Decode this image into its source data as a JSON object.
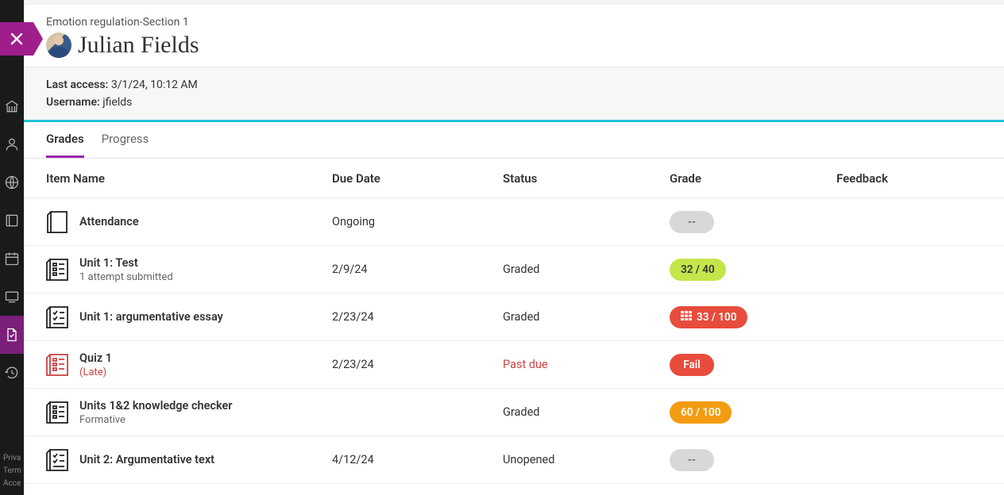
{
  "breadcrumb": "Emotion regulation-Section 1",
  "student_name": "Julian Fields",
  "info": {
    "last_access_label": "Last access:",
    "last_access": "3/1/24, 10:12 AM",
    "username_label": "Username:",
    "username": "jfields"
  },
  "tabs": {
    "grades": "Grades",
    "progress": "Progress"
  },
  "columns": {
    "item": "Item Name",
    "due": "Due Date",
    "status": "Status",
    "grade": "Grade",
    "feedback": "Feedback"
  },
  "rows": [
    {
      "icon": "attendance",
      "title": "Attendance",
      "sub": "",
      "sub_late": false,
      "due": "Ongoing",
      "status": "",
      "status_pastdue": false,
      "grade": "--",
      "grade_style": "blank",
      "has_rubric": false
    },
    {
      "icon": "test",
      "title": "Unit 1: Test",
      "sub": "1 attempt submitted",
      "sub_late": false,
      "due": "2/9/24",
      "status": "Graded",
      "status_pastdue": false,
      "grade": "32 / 40",
      "grade_style": "green",
      "has_rubric": false
    },
    {
      "icon": "essay",
      "title": "Unit 1: argumentative essay",
      "sub": "",
      "sub_late": false,
      "due": "2/23/24",
      "status": "Graded",
      "status_pastdue": false,
      "grade": "33 / 100",
      "grade_style": "red",
      "has_rubric": true
    },
    {
      "icon": "quiz",
      "title": "Quiz 1",
      "sub": "(Late)",
      "sub_late": true,
      "due": "2/23/24",
      "status": "Past due",
      "status_pastdue": true,
      "grade": "Fail",
      "grade_style": "redfail",
      "has_rubric": false
    },
    {
      "icon": "test",
      "title": "Units 1&2 knowledge checker",
      "sub": "Formative",
      "sub_late": false,
      "due": "",
      "status": "Graded",
      "status_pastdue": false,
      "grade": "60 / 100",
      "grade_style": "orange",
      "has_rubric": false
    },
    {
      "icon": "essay",
      "title": "Unit 2: Argumentative text",
      "sub": "",
      "sub_late": false,
      "due": "4/12/24",
      "status": "Unopened",
      "status_pastdue": false,
      "grade": "--",
      "grade_style": "blank",
      "has_rubric": false
    }
  ],
  "sidebar_footer": [
    "Priva",
    "Term",
    "Acce"
  ],
  "colors": {
    "accent_purple": "#9c27b0",
    "close_pink": "#a01e8c",
    "cyan_border": "#20c4d4",
    "pill_green": "#c5e64a",
    "pill_red": "#e74c3c",
    "pill_orange": "#f39c12",
    "pill_blank": "#d8d8d8"
  }
}
